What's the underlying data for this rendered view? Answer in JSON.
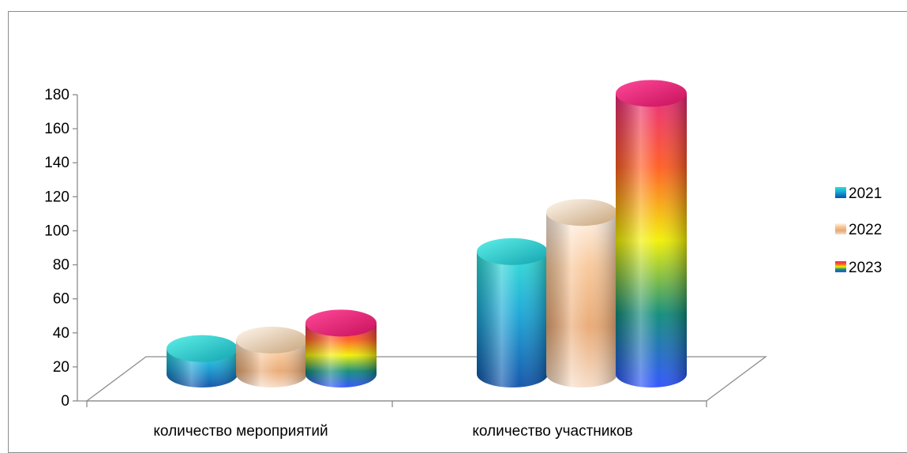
{
  "chart_data": {
    "type": "bar",
    "style": "3d-cylinder",
    "categories": [
      "количество мероприятий",
      "количество участников"
    ],
    "series": [
      {
        "name": "2021",
        "values": [
          15,
          72
        ]
      },
      {
        "name": "2022",
        "values": [
          20,
          95
        ]
      },
      {
        "name": "2023",
        "values": [
          30,
          165
        ]
      }
    ],
    "title": "",
    "xlabel": "",
    "ylabel": "",
    "ylim": [
      0,
      180
    ],
    "yticks": [
      "0",
      "20",
      "40",
      "60",
      "80",
      "100",
      "120",
      "140",
      "160",
      "180"
    ],
    "grid": false,
    "legend_position": "right",
    "series_colors": {
      "2021": [
        "#0b4fa8",
        "#1bb3d8",
        "#27d9d0"
      ],
      "2022": [
        "#e8a870",
        "#fff2e6",
        "#c9a276"
      ],
      "2023": [
        "#2a4fff",
        "#0fa060",
        "#ffee00",
        "#ff6a1a",
        "#e8257a"
      ]
    }
  }
}
